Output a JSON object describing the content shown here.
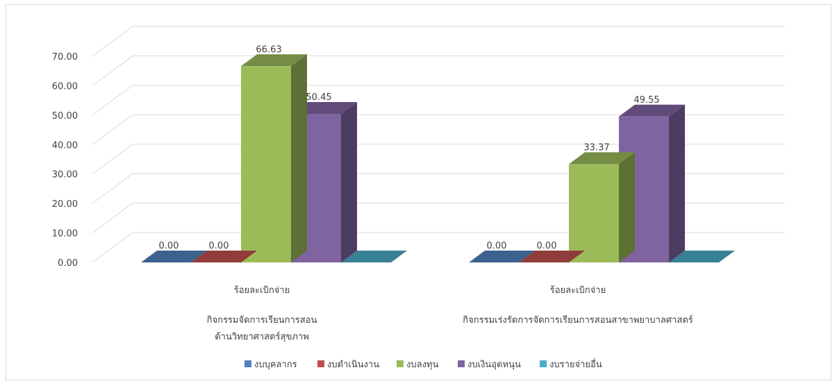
{
  "chart_data": {
    "type": "bar",
    "title": "",
    "xlabel": "",
    "ylabel": "",
    "ylim": [
      0,
      70
    ],
    "yticks": [
      "0.00",
      "10.00",
      "20.00",
      "30.00",
      "40.00",
      "50.00",
      "60.00",
      "70.00"
    ],
    "grid": true,
    "legend_position": "bottom",
    "categories": [
      {
        "lines": [
          "ร้อยละเบิกจ่าย",
          "กิจกรรมจัดการเรียนการสอน",
          "ด้านวิทยาศาสตร์สุขภาพ"
        ]
      },
      {
        "lines": [
          "ร้อยละเบิกจ่าย",
          "กิจกรรมเร่งรัดการจัดการเรียนการสอนสาขาพยาบาลศาสตร์"
        ]
      }
    ],
    "series": [
      {
        "name": "งบบุคลากร",
        "color": "#4f81bd",
        "values": [
          0,
          0
        ],
        "labels": [
          "0.00",
          "0.00"
        ]
      },
      {
        "name": "งบดำเนินงาน",
        "color": "#c0504d",
        "values": [
          0,
          0
        ],
        "labels": [
          "0.00",
          "0.00"
        ]
      },
      {
        "name": "งบลงทุน",
        "color": "#9bbb59",
        "values": [
          66.63,
          33.37
        ],
        "labels": [
          "66.63",
          "33.37"
        ]
      },
      {
        "name": "งบเงินอุดหนุน",
        "color": "#8064a2",
        "values": [
          50.45,
          49.55
        ],
        "labels": [
          "50.45",
          "49.55"
        ]
      },
      {
        "name": "งบรายจ่ายอื่น",
        "color": "#4bacc6",
        "values": [
          0,
          0
        ],
        "labels": [
          "",
          ""
        ]
      }
    ]
  }
}
